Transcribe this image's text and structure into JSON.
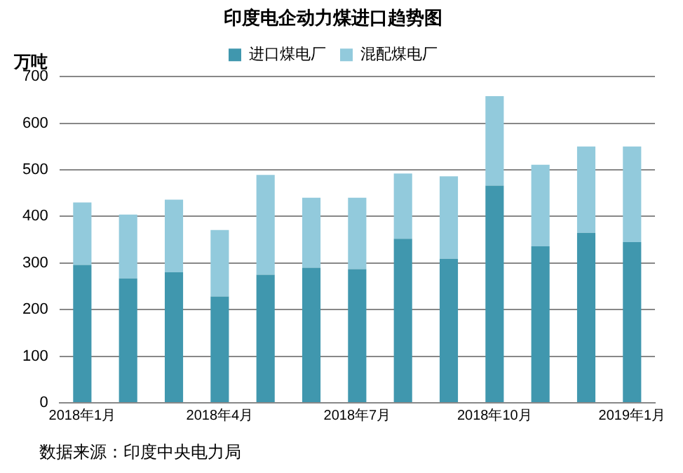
{
  "chart_data": {
    "type": "bar",
    "title": "印度电企动力煤进口趋势图",
    "ylabel": "万吨",
    "categories": [
      "2018年1月",
      null,
      null,
      "2018年4月",
      null,
      null,
      "2018年7月",
      null,
      null,
      "2018年10月",
      null,
      null,
      "2019年1月"
    ],
    "series": [
      {
        "name": "进口煤电厂",
        "color": "#4097ae",
        "values": [
          296,
          267,
          280,
          228,
          275,
          290,
          287,
          352,
          309,
          466,
          336,
          365,
          345
        ]
      },
      {
        "name": "混配煤电厂",
        "color": "#92cadc",
        "values": [
          134,
          137,
          156,
          143,
          214,
          150,
          153,
          140,
          177,
          192,
          175,
          185,
          205
        ]
      }
    ],
    "stacked": true,
    "ylim": [
      0,
      700
    ],
    "yticks": [
      0,
      100,
      200,
      300,
      400,
      500,
      600,
      700
    ],
    "grid": "y",
    "legend": "top",
    "annotations": [
      "数据来源：印度中央电力局"
    ]
  }
}
